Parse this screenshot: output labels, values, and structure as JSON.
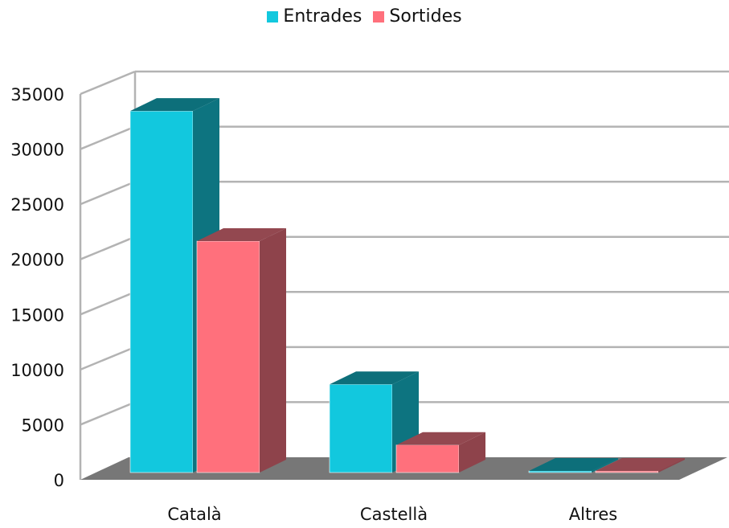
{
  "chart_data": {
    "type": "bar",
    "categories": [
      "Català",
      "Castellà",
      "Altres"
    ],
    "series": [
      {
        "name": "Entrades",
        "values": [
          32800,
          8000,
          80
        ],
        "color": "#12c8de",
        "side_color": "#0d7480",
        "top_color": "#0d6f7a"
      },
      {
        "name": "Sortides",
        "values": [
          21000,
          2500,
          80
        ],
        "color": "#ff707c",
        "side_color": "#8e434b",
        "top_color": "#934850"
      }
    ],
    "ylim": [
      0,
      35000
    ],
    "yticks": [
      "0",
      "5000",
      "10000",
      "15000",
      "20000",
      "25000",
      "30000",
      "35000"
    ],
    "grid": true,
    "legend_position": "top-center",
    "three_d": true,
    "title": "",
    "xlabel": "",
    "ylabel": ""
  }
}
